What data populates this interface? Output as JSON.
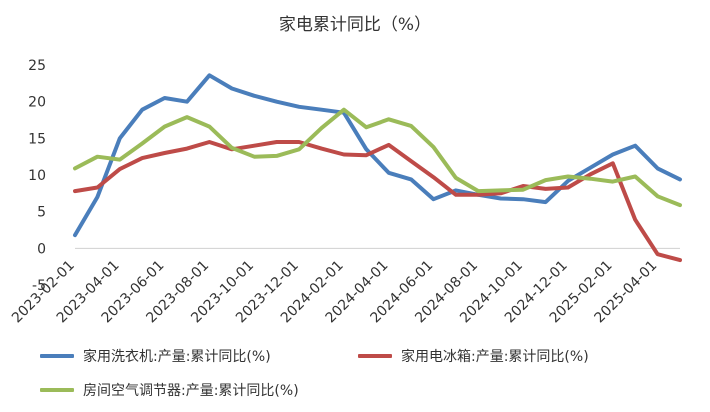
{
  "chart_data": {
    "type": "line",
    "title": "家电累计同比（%）",
    "xlabel": "",
    "ylabel": "",
    "ylim": [
      -5,
      25
    ],
    "yticks": [
      -5,
      0,
      5,
      10,
      15,
      20,
      25
    ],
    "grid": false,
    "legend_position": "bottom",
    "x": [
      "2023-02-01",
      "2023-03-01",
      "2023-04-01",
      "2023-05-01",
      "2023-06-01",
      "2023-07-01",
      "2023-08-01",
      "2023-09-01",
      "2023-10-01",
      "2023-11-01",
      "2023-12-01",
      "2024-01-01",
      "2024-02-01",
      "2024-03-01",
      "2024-04-01",
      "2024-05-01",
      "2024-06-01",
      "2024-07-01",
      "2024-08-01",
      "2024-09-01",
      "2024-10-01",
      "2024-11-01",
      "2024-12-01",
      "2025-01-01",
      "2025-02-01",
      "2025-03-01",
      "2025-04-01",
      "2025-05-01"
    ],
    "xtick_labels": [
      "2023-02-01",
      "2023-04-01",
      "2023-06-01",
      "2023-08-01",
      "2023-10-01",
      "2023-12-01",
      "2024-02-01",
      "2024-04-01",
      "2024-06-01",
      "2024-08-01",
      "2024-10-01",
      "2024-12-01",
      "2025-02-01",
      "2025-04-01"
    ],
    "series": [
      {
        "name": "家用洗衣机:产量:累计同比(%)",
        "color": "#4A7EBB",
        "values": [
          1.8,
          7.0,
          15.0,
          18.9,
          20.5,
          20.0,
          23.6,
          21.8,
          20.8,
          20.0,
          19.3,
          18.9,
          18.5,
          13.5,
          10.3,
          9.4,
          6.7,
          7.9,
          7.3,
          6.8,
          6.7,
          6.3,
          9.2,
          11.0,
          12.8,
          14.0,
          10.9,
          9.4
        ]
      },
      {
        "name": "家用电冰箱:产量:累计同比(%)",
        "color": "#BE4B48",
        "values": [
          7.8,
          8.3,
          10.8,
          12.3,
          13.0,
          13.6,
          14.5,
          13.5,
          14.0,
          14.5,
          14.5,
          13.6,
          12.8,
          12.7,
          14.1,
          11.9,
          9.7,
          7.3,
          7.3,
          7.5,
          8.5,
          8.1,
          8.3,
          10.1,
          11.6,
          3.9,
          -0.8,
          -1.6
        ]
      },
      {
        "name": "房间空气调节器:产量:累计同比(%)",
        "color": "#9BBB59",
        "values": [
          10.9,
          12.5,
          12.1,
          14.3,
          16.6,
          17.9,
          16.6,
          13.7,
          12.5,
          12.6,
          13.5,
          16.4,
          18.9,
          16.5,
          17.6,
          16.7,
          13.8,
          9.6,
          7.8,
          7.9,
          8.0,
          9.3,
          9.8,
          9.5,
          9.1,
          9.8,
          7.1,
          5.9
        ]
      }
    ]
  }
}
